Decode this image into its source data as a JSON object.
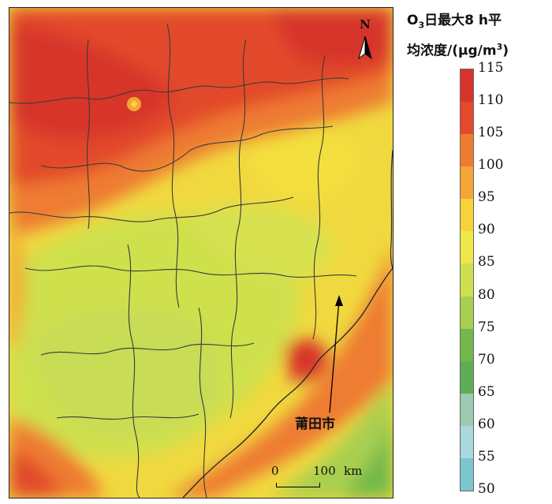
{
  "legend": {
    "title_prefix": "O",
    "title_sub": "3",
    "title_line1_rest": "日最大8 h平",
    "title_line2_a": "均浓度/(μg/m",
    "title_sup": "3",
    "title_line2_b": ")",
    "ticks": [
      "115",
      "110",
      "105",
      "100",
      "95",
      "90",
      "85",
      "80",
      "75",
      "70",
      "65",
      "60",
      "55",
      "50"
    ],
    "colors": [
      "#d7342c",
      "#e24a2b",
      "#ee7c30",
      "#f4a535",
      "#f7d23a",
      "#eee84a",
      "#cfe04e",
      "#a8cf4f",
      "#72b84c",
      "#5fae57",
      "#9ec9b2",
      "#a9d8de",
      "#7cc6d0",
      "#5b8fcb"
    ]
  },
  "map": {
    "north_label": "N",
    "scale_zero": "0",
    "scale_max": "100",
    "scale_unit": "km",
    "city_label": "莆田市"
  }
}
